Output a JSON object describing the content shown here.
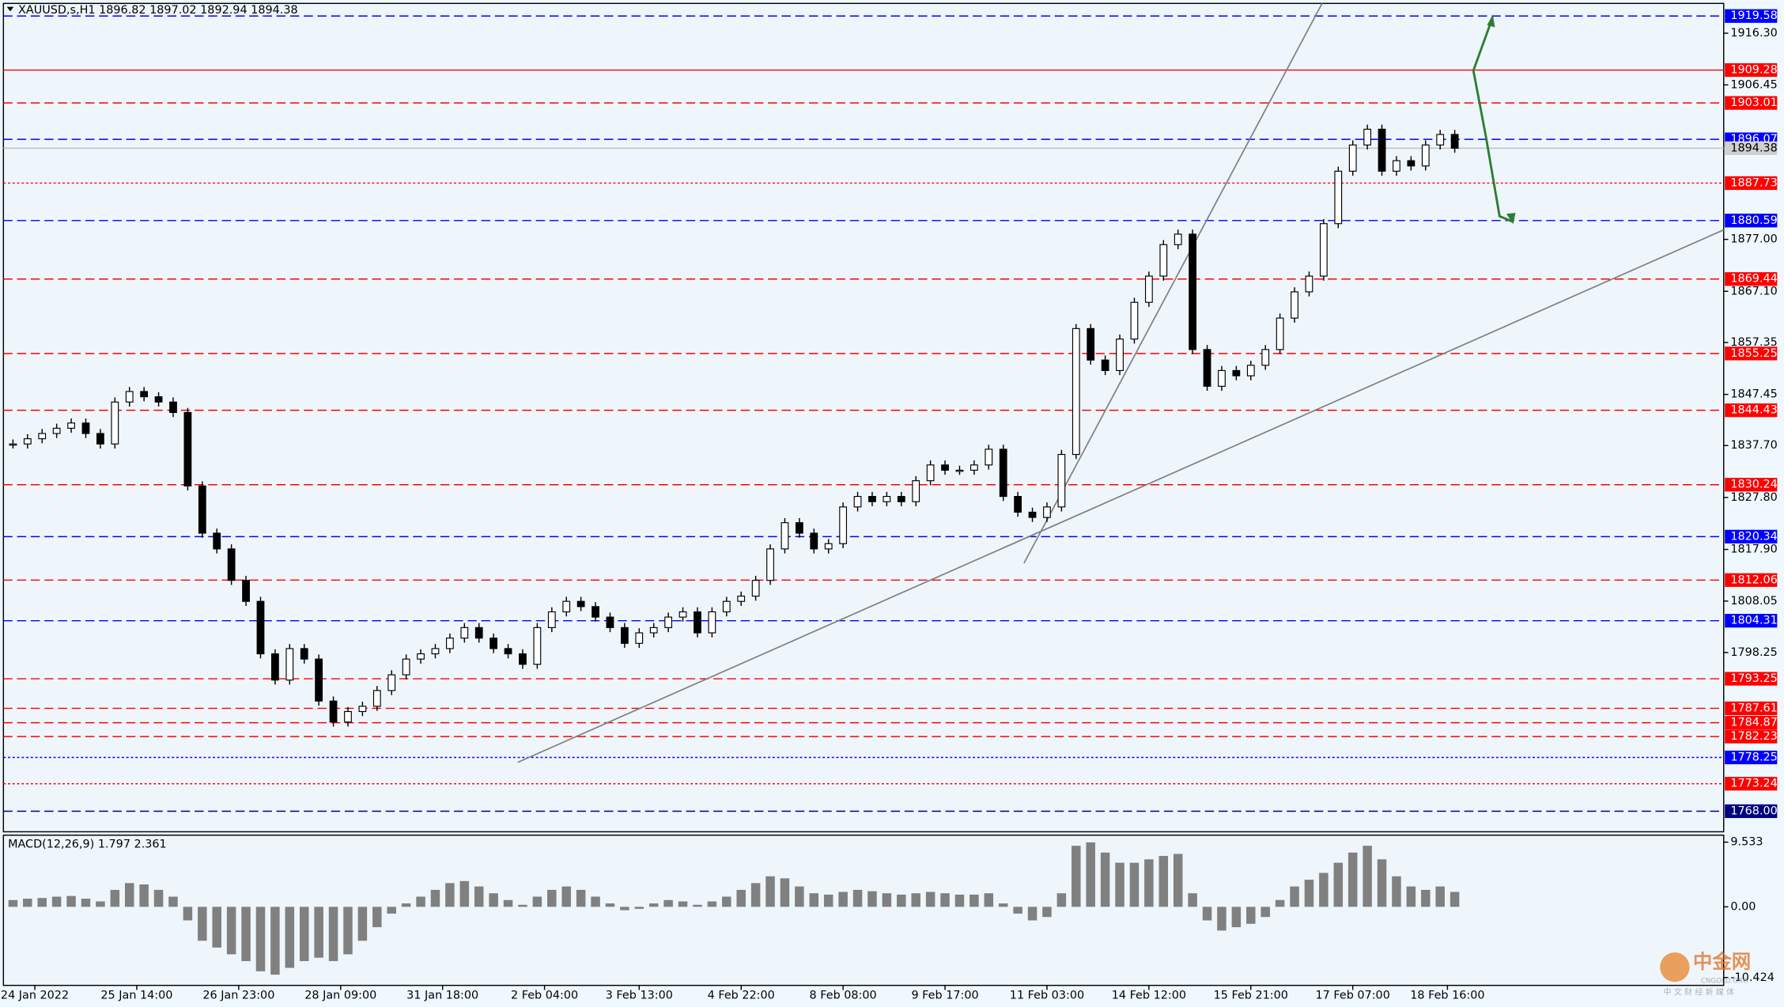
{
  "chart_data": {
    "type": "candlestick",
    "title": "XAUUSD,s,H1  1896.82 1897.02 1892.94 1894.38",
    "current_price": 1894.38,
    "ylim": [
      1764.08,
      1921.98
    ],
    "xlim": [
      -0.5,
      99.5
    ],
    "yticks": [
      {
        "value": 1916.3,
        "label": "1916.30"
      },
      1906.45,
      {
        "value": 1877,
        "label": "1877.00"
      },
      {
        "value": 1867.1,
        "label": "1867.10"
      },
      1857.35,
      1847.45,
      {
        "value": 1837.7,
        "label": "1837.70"
      },
      {
        "value": 1827.8,
        "label": "1827.80"
      },
      {
        "value": 1817.9,
        "label": "1817.90"
      },
      1808.05,
      1798.25
    ],
    "xticks": [
      {
        "value": 1.5,
        "label": "24 Jan 2022"
      },
      {
        "value": 8.5,
        "label": "25 Jan 14:00"
      },
      {
        "value": 15.5,
        "label": "26 Jan 23:00"
      },
      {
        "value": 22.5,
        "label": "28 Jan 09:00"
      },
      {
        "value": 29.5,
        "label": "31 Jan 18:00"
      },
      {
        "value": 36.5,
        "label": "2 Feb 04:00"
      },
      {
        "value": 43,
        "label": "3 Feb 13:00"
      },
      {
        "value": 50,
        "label": "4 Feb 22:00"
      },
      {
        "value": 57,
        "label": "8 Feb 08:00"
      },
      {
        "value": 64,
        "label": "9 Feb 17:00"
      },
      {
        "value": 71,
        "label": "11 Feb 03:00"
      },
      {
        "value": 78,
        "label": "14 Feb 12:00"
      },
      {
        "value": 85,
        "label": "15 Feb 21:00"
      },
      {
        "value": 92,
        "label": "17 Feb 07:00"
      },
      {
        "value": 98.5,
        "label": "18 Feb 16:00"
      }
    ],
    "closes": [
      1838,
      1839,
      1840,
      1841,
      1842,
      1840,
      1838,
      1846,
      1848,
      1847,
      1846,
      1844,
      1830,
      1821,
      1818,
      1812,
      1808,
      1798,
      1793,
      1799,
      1797,
      1789,
      1785,
      1787,
      1788,
      1791,
      1794,
      1797,
      1798,
      1799,
      1801,
      1803,
      1801,
      1799,
      1798,
      1796,
      1803,
      1806,
      1808,
      1807,
      1805,
      1803,
      1800,
      1802,
      1803,
      1805,
      1806,
      1802,
      1806,
      1808,
      1809,
      1812,
      1818,
      1823,
      1821,
      1818,
      1819,
      1826,
      1828,
      1827,
      1828,
      1827,
      1831,
      1834,
      1833,
      1833,
      1834,
      1837,
      1828,
      1825,
      1824,
      1826,
      1836,
      1860,
      1854,
      1852,
      1858,
      1865,
      1870,
      1876,
      1878,
      1856,
      1849,
      1852,
      1851,
      1853,
      1856,
      1862,
      1867,
      1870,
      1880,
      1890,
      1895,
      1898,
      1890,
      1892,
      1891,
      1895,
      1897,
      1894.38
    ],
    "levels": [
      {
        "value": 1919.58,
        "color": "#0000ff",
        "style": "dashed"
      },
      {
        "value": 1909.28,
        "color": "#ff0000",
        "style": "solid"
      },
      {
        "value": 1903.01,
        "color": "#ff0000",
        "style": "dashed"
      },
      {
        "value": 1896.07,
        "color": "#0000ff",
        "style": "dashed"
      },
      {
        "value": 1887.73,
        "color": "#ff0000",
        "style": "dotted"
      },
      {
        "value": 1880.59,
        "color": "#0000ff",
        "style": "dashed"
      },
      {
        "value": 1869.44,
        "color": "#ff0000",
        "style": "dashed"
      },
      {
        "value": 1855.25,
        "color": "#ff0000",
        "style": "dashed"
      },
      {
        "value": 1844.43,
        "color": "#ff0000",
        "style": "dashed"
      },
      {
        "value": 1830.24,
        "color": "#ff0000",
        "style": "dashed"
      },
      {
        "value": 1820.34,
        "color": "#0000ff",
        "style": "dashed"
      },
      {
        "value": 1812.06,
        "color": "#ff0000",
        "style": "dashed"
      },
      {
        "value": 1804.31,
        "color": "#0000ff",
        "style": "dashed"
      },
      {
        "value": 1793.25,
        "color": "#ff0000",
        "style": "dashed"
      },
      {
        "value": 1787.61,
        "color": "#ff0000",
        "style": "dashed"
      },
      {
        "value": 1784.87,
        "color": "#ff0000",
        "style": "dashed"
      },
      {
        "value": 1782.23,
        "color": "#ff0000",
        "style": "dashed"
      },
      {
        "value": 1778.25,
        "color": "#0000ff",
        "style": "dotted"
      },
      {
        "value": 1773.24,
        "color": "#ff0000",
        "style": "dotted"
      },
      {
        "value": 1768,
        "label": "1768.00",
        "color": "#000080",
        "style": "dashed"
      }
    ],
    "macd": {
      "label": "MACD(12,26,9) 1.797 2.361",
      "color": "#808080",
      "ylim": [
        -11.58,
        10.56
      ],
      "yticks": [
        9.533,
        {
          "value": 0,
          "label": "0.00"
        },
        -10.424
      ],
      "values": [
        1.0,
        1.2,
        1.3,
        1.5,
        1.6,
        1.2,
        0.8,
        2.5,
        3.5,
        3.3,
        2.5,
        1.5,
        -2,
        -5,
        -6,
        -7,
        -8,
        -9.5,
        -10,
        -9,
        -8,
        -7.5,
        -8,
        -7,
        -5,
        -3,
        -1,
        0.5,
        1.5,
        2.5,
        3.5,
        3.8,
        3,
        2,
        1,
        0.3,
        1.5,
        2.5,
        3,
        2.5,
        1.5,
        0.5,
        -0.5,
        -0.3,
        0.5,
        1,
        0.8,
        0.3,
        0.8,
        1.5,
        2.5,
        3.5,
        4.5,
        4.2,
        3,
        2,
        1.8,
        2.2,
        2.5,
        2.3,
        2,
        1.8,
        2,
        2.2,
        2,
        1.8,
        1.8,
        2,
        0.5,
        -1,
        -2,
        -1.5,
        2,
        9,
        9.5,
        8,
        6.5,
        6.5,
        7,
        7.5,
        7.8,
        2,
        -2,
        -3.5,
        -3,
        -2.5,
        -1.5,
        1,
        3,
        4,
        5,
        6.5,
        8,
        9,
        7,
        4.5,
        3,
        2.5,
        3,
        2.2
      ]
    }
  },
  "watermark": {
    "brand": "中金网",
    "site": "CNGOLD.ORG",
    "slogan": "中 文 财 经 新 媒 体"
  }
}
